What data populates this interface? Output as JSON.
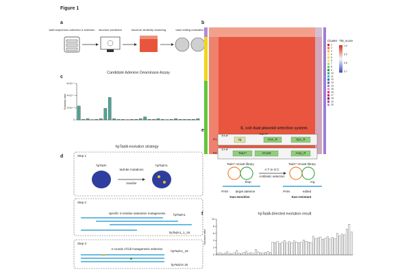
{
  "figure_label": "Figure 1",
  "panel_a": {
    "label": "a",
    "steps": [
      "tadA sequences collection & selection",
      "structure prediction",
      "structure similarity clustering",
      "base editing evaluation"
    ]
  },
  "panel_b": {
    "label": "b",
    "legend_titles": [
      "Cluster",
      "TM_score"
    ],
    "clusters": [
      "1",
      "2",
      "3",
      "4",
      "5",
      "6",
      "7",
      "8",
      "9",
      "10",
      "11",
      "12",
      "13",
      "14",
      "15",
      "16",
      "17",
      "18",
      "19",
      "20"
    ],
    "tm_ticks": [
      "1.0",
      "0.9",
      "0.8",
      "0.7"
    ]
  },
  "panel_c": {
    "label": "c",
    "type": "bar",
    "title": "Candidate Adenine Deaminase Assay",
    "ylabel": "Survival ratio",
    "color": "#4fa596",
    "values": [
      0.00023,
      1e-05,
      2e-05,
      5e-06,
      1e-05,
      2e-05,
      0.00019,
      0.00037,
      2e-05,
      1e-05,
      1e-05,
      5e-06,
      1e-05,
      1e-05,
      2e-05,
      5e-05,
      1e-05,
      1e-05,
      2e-05,
      1e-05,
      5e-06,
      1e-05,
      2e-05,
      1e-05,
      1e-05,
      1e-05,
      1e-05,
      2e-05
    ],
    "ylim": [
      0,
      0.0006
    ],
    "yticks": [
      0,
      {
        "value": 0.0002,
        "label": "2×10⁻⁴"
      },
      {
        "value": 0.0004,
        "label": "4×10⁻⁴"
      },
      {
        "value": 0.0006,
        "label": "6×10⁻⁴"
      }
    ]
  },
  "panel_d": {
    "label": "d",
    "title": "hpTadA evolution strategy",
    "steps": [
      {
        "name": "Step 1",
        "texts": [
          "hpTadA",
          "tadA8e mutations",
          "transfer",
          "hpTadA1"
        ]
      },
      {
        "name": "Step 2",
        "texts": [
          "specific 4-residue saturation mutagenesis",
          "hpTadA1",
          "hpTadA1_1_18"
        ]
      },
      {
        "name": "Step 3",
        "texts": [
          "4 rounds of full mutagenesis selection",
          "hpTadA1_18",
          "hpTadAS 20"
        ]
      }
    ]
  },
  "panel_e": {
    "label": "e",
    "title": "E. coli dual plasmid selection system",
    "p1": [
      "P1",
      "T7-P",
      "sg",
      "Kan-P",
      "Kan_R",
      "Spc_R"
    ],
    "p2": [
      "P2",
      "T7-P",
      "TadA*",
      "nCas9",
      "Amp_R"
    ],
    "left": [
      "TadA* nCas9 library",
      "Stop",
      "target adenine",
      "PAM",
      "Kan-sensitive"
    ],
    "middle": [
      "A:T to G:C",
      "Antibiotic selection"
    ],
    "right": [
      "TadA* nCas9 library",
      "Arg",
      "edited",
      "PAM",
      "Kan-resistant"
    ]
  },
  "panel_f": {
    "label": "f",
    "type": "bar",
    "title": "hpTadA directed evolution result",
    "ylabel": "Survival ratio",
    "color": "#ffffff",
    "values": [
      0.4,
      0.6,
      0.3,
      0.5,
      0.8,
      0.4,
      0.3,
      0.6,
      1.2,
      0.5,
      0.4,
      0.7,
      1.0,
      0.5,
      0.6,
      0.4,
      1.5,
      0.8,
      0.6,
      0.5,
      0.7,
      0.9,
      0.6,
      3.6,
      3.4,
      3.8,
      3.2,
      3.5,
      4.0,
      3.3,
      3.7,
      3.4,
      3.9,
      3.6,
      3.3,
      3.5,
      4.2,
      3.8,
      3.6,
      3.4,
      5.2,
      4.6,
      4.8,
      5.0,
      4.4,
      4.7,
      5.1,
      4.5,
      4.9,
      4.6,
      6.0,
      5.4,
      5.8,
      5.6,
      7.2,
      8.6,
      6.4
    ],
    "ylim": [
      0,
      10
    ],
    "yticks": [
      0,
      2,
      4,
      6,
      8,
      10
    ]
  }
}
